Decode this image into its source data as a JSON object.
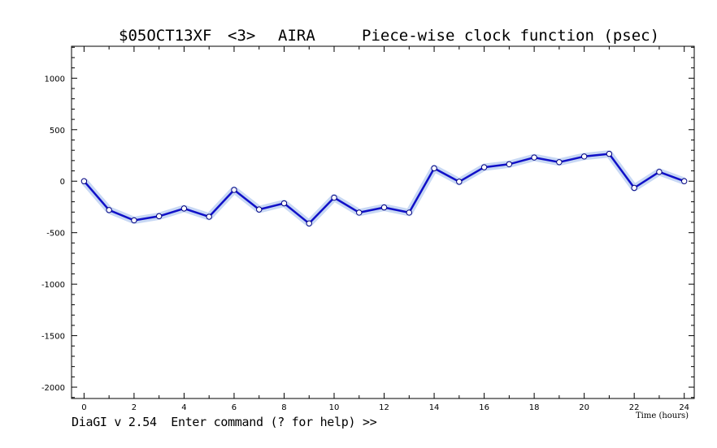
{
  "title": {
    "experiment": "$05OCT13XF",
    "index": "<3>",
    "station": "AIRA",
    "description": "Piece-wise clock function (psec)"
  },
  "status_line": "DiaGI v 2.54  Enter command (? for help) >>",
  "chart_data": {
    "type": "line",
    "xlabel": "Time (hours)",
    "ylabel": "",
    "xlim": [
      -0.5,
      24.4
    ],
    "ylim": [
      -2110,
      1310
    ],
    "xticks": [
      0,
      2,
      4,
      6,
      8,
      10,
      12,
      14,
      16,
      18,
      20,
      22,
      24
    ],
    "yticks": [
      1000,
      500,
      0,
      -500,
      -1000,
      -1500,
      -2000
    ],
    "grid": false,
    "colors": {
      "line": "#1010c8",
      "band": "#c8d8f4",
      "marker_fill": "#ffffff",
      "marker_edge": "#000080"
    },
    "series": [
      {
        "x": [
          0,
          1,
          2,
          3,
          4,
          5,
          6,
          7,
          8,
          9,
          10,
          11,
          12,
          13,
          14,
          15,
          16,
          17,
          18,
          19,
          20,
          21,
          22,
          23,
          24
        ],
        "y": [
          0,
          -280,
          -380,
          -340,
          -265,
          -345,
          -85,
          -275,
          -215,
          -410,
          -160,
          -305,
          -255,
          -305,
          125,
          -5,
          135,
          165,
          230,
          185,
          240,
          265,
          -65,
          90,
          0
        ]
      }
    ]
  }
}
